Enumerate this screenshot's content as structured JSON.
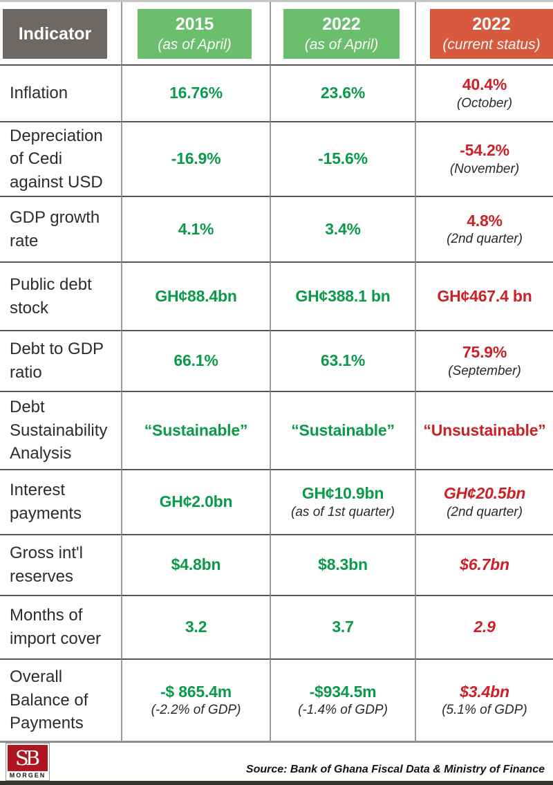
{
  "colors": {
    "green_text": "#0a9a4a",
    "red_text": "#cc2127",
    "header_green_bg": "#6bbe6b",
    "header_orange_bg": "#d7593e",
    "header_gray_bg": "#6c6865"
  },
  "header": {
    "columns": [
      {
        "label": "Indicator",
        "sub": ""
      },
      {
        "label": "2015",
        "sub": "(as of April)"
      },
      {
        "label": "2022",
        "sub": "(as of April)"
      },
      {
        "label": "2022",
        "sub": "(current status)"
      }
    ]
  },
  "chart_data": {
    "type": "table",
    "title": "",
    "columns": [
      "Indicator",
      "2015 (as of April)",
      "2022 (as of April)",
      "2022 (current status)"
    ],
    "rows": [
      {
        "indicator": "Inflation",
        "cells": [
          {
            "value": "16.76%",
            "tone": "green"
          },
          {
            "value": "23.6%",
            "tone": "green"
          },
          {
            "value": "40.4%",
            "tone": "red",
            "note": "(October)"
          }
        ]
      },
      {
        "indicator": "Depreciation of Cedi against USD",
        "cells": [
          {
            "value": "-16.9%",
            "tone": "green"
          },
          {
            "value": "-15.6%",
            "tone": "green"
          },
          {
            "value": "-54.2%",
            "tone": "red",
            "note": "(November)"
          }
        ]
      },
      {
        "indicator": "GDP growth rate",
        "cells": [
          {
            "value": "4.1%",
            "tone": "green"
          },
          {
            "value": "3.4%",
            "tone": "green"
          },
          {
            "value": "4.8%",
            "tone": "red",
            "note": "(2nd quarter)"
          }
        ]
      },
      {
        "indicator": "Public debt stock",
        "cells": [
          {
            "value": "GH¢88.4bn",
            "tone": "green"
          },
          {
            "value": "GH¢388.1 bn",
            "tone": "green"
          },
          {
            "value": "GH¢467.4 bn",
            "tone": "red"
          }
        ]
      },
      {
        "indicator": "Debt to GDP ratio",
        "cells": [
          {
            "value": "66.1%",
            "tone": "green"
          },
          {
            "value": "63.1%",
            "tone": "green"
          },
          {
            "value": "75.9%",
            "tone": "red",
            "note": "(September)"
          }
        ]
      },
      {
        "indicator": "Debt Sustainability Analysis",
        "cells": [
          {
            "value": "“Sustainable”",
            "tone": "green"
          },
          {
            "value": "“Sustainable”",
            "tone": "green"
          },
          {
            "value": "“Unsustainable”",
            "tone": "red"
          }
        ]
      },
      {
        "indicator": "Interest payments",
        "cells": [
          {
            "value": "GH¢2.0bn",
            "tone": "green"
          },
          {
            "value": "GH¢10.9bn",
            "tone": "green",
            "note": "(as of 1st quarter)"
          },
          {
            "value": "GH¢20.5bn",
            "tone": "red",
            "italic": true,
            "note": "(2nd quarter)"
          }
        ]
      },
      {
        "indicator": "Gross int'l reserves",
        "cells": [
          {
            "value": "$4.8bn",
            "tone": "green"
          },
          {
            "value": "$8.3bn",
            "tone": "green"
          },
          {
            "value": "$6.7bn",
            "tone": "red",
            "italic": true
          }
        ]
      },
      {
        "indicator": "Months of import cover",
        "cells": [
          {
            "value": "3.2",
            "tone": "green"
          },
          {
            "value": "3.7",
            "tone": "green"
          },
          {
            "value": "2.9",
            "tone": "red",
            "italic": true
          }
        ]
      },
      {
        "indicator": "Overall Balance of Payments",
        "cells": [
          {
            "value": "-$ 865.4m",
            "tone": "green",
            "note": "(-2.2% of GDP)"
          },
          {
            "value": "-$934.5m",
            "tone": "green",
            "note": "(-1.4% of GDP)"
          },
          {
            "value": "$3.4bn",
            "tone": "red",
            "italic": true,
            "note": "(5.1% of GDP)"
          }
        ]
      }
    ]
  },
  "footer": {
    "logo": {
      "monogram": "SB",
      "wordmark": "MORGEN"
    },
    "source": "Source: Bank of Ghana Fiscal Data & Ministry of Finance"
  }
}
